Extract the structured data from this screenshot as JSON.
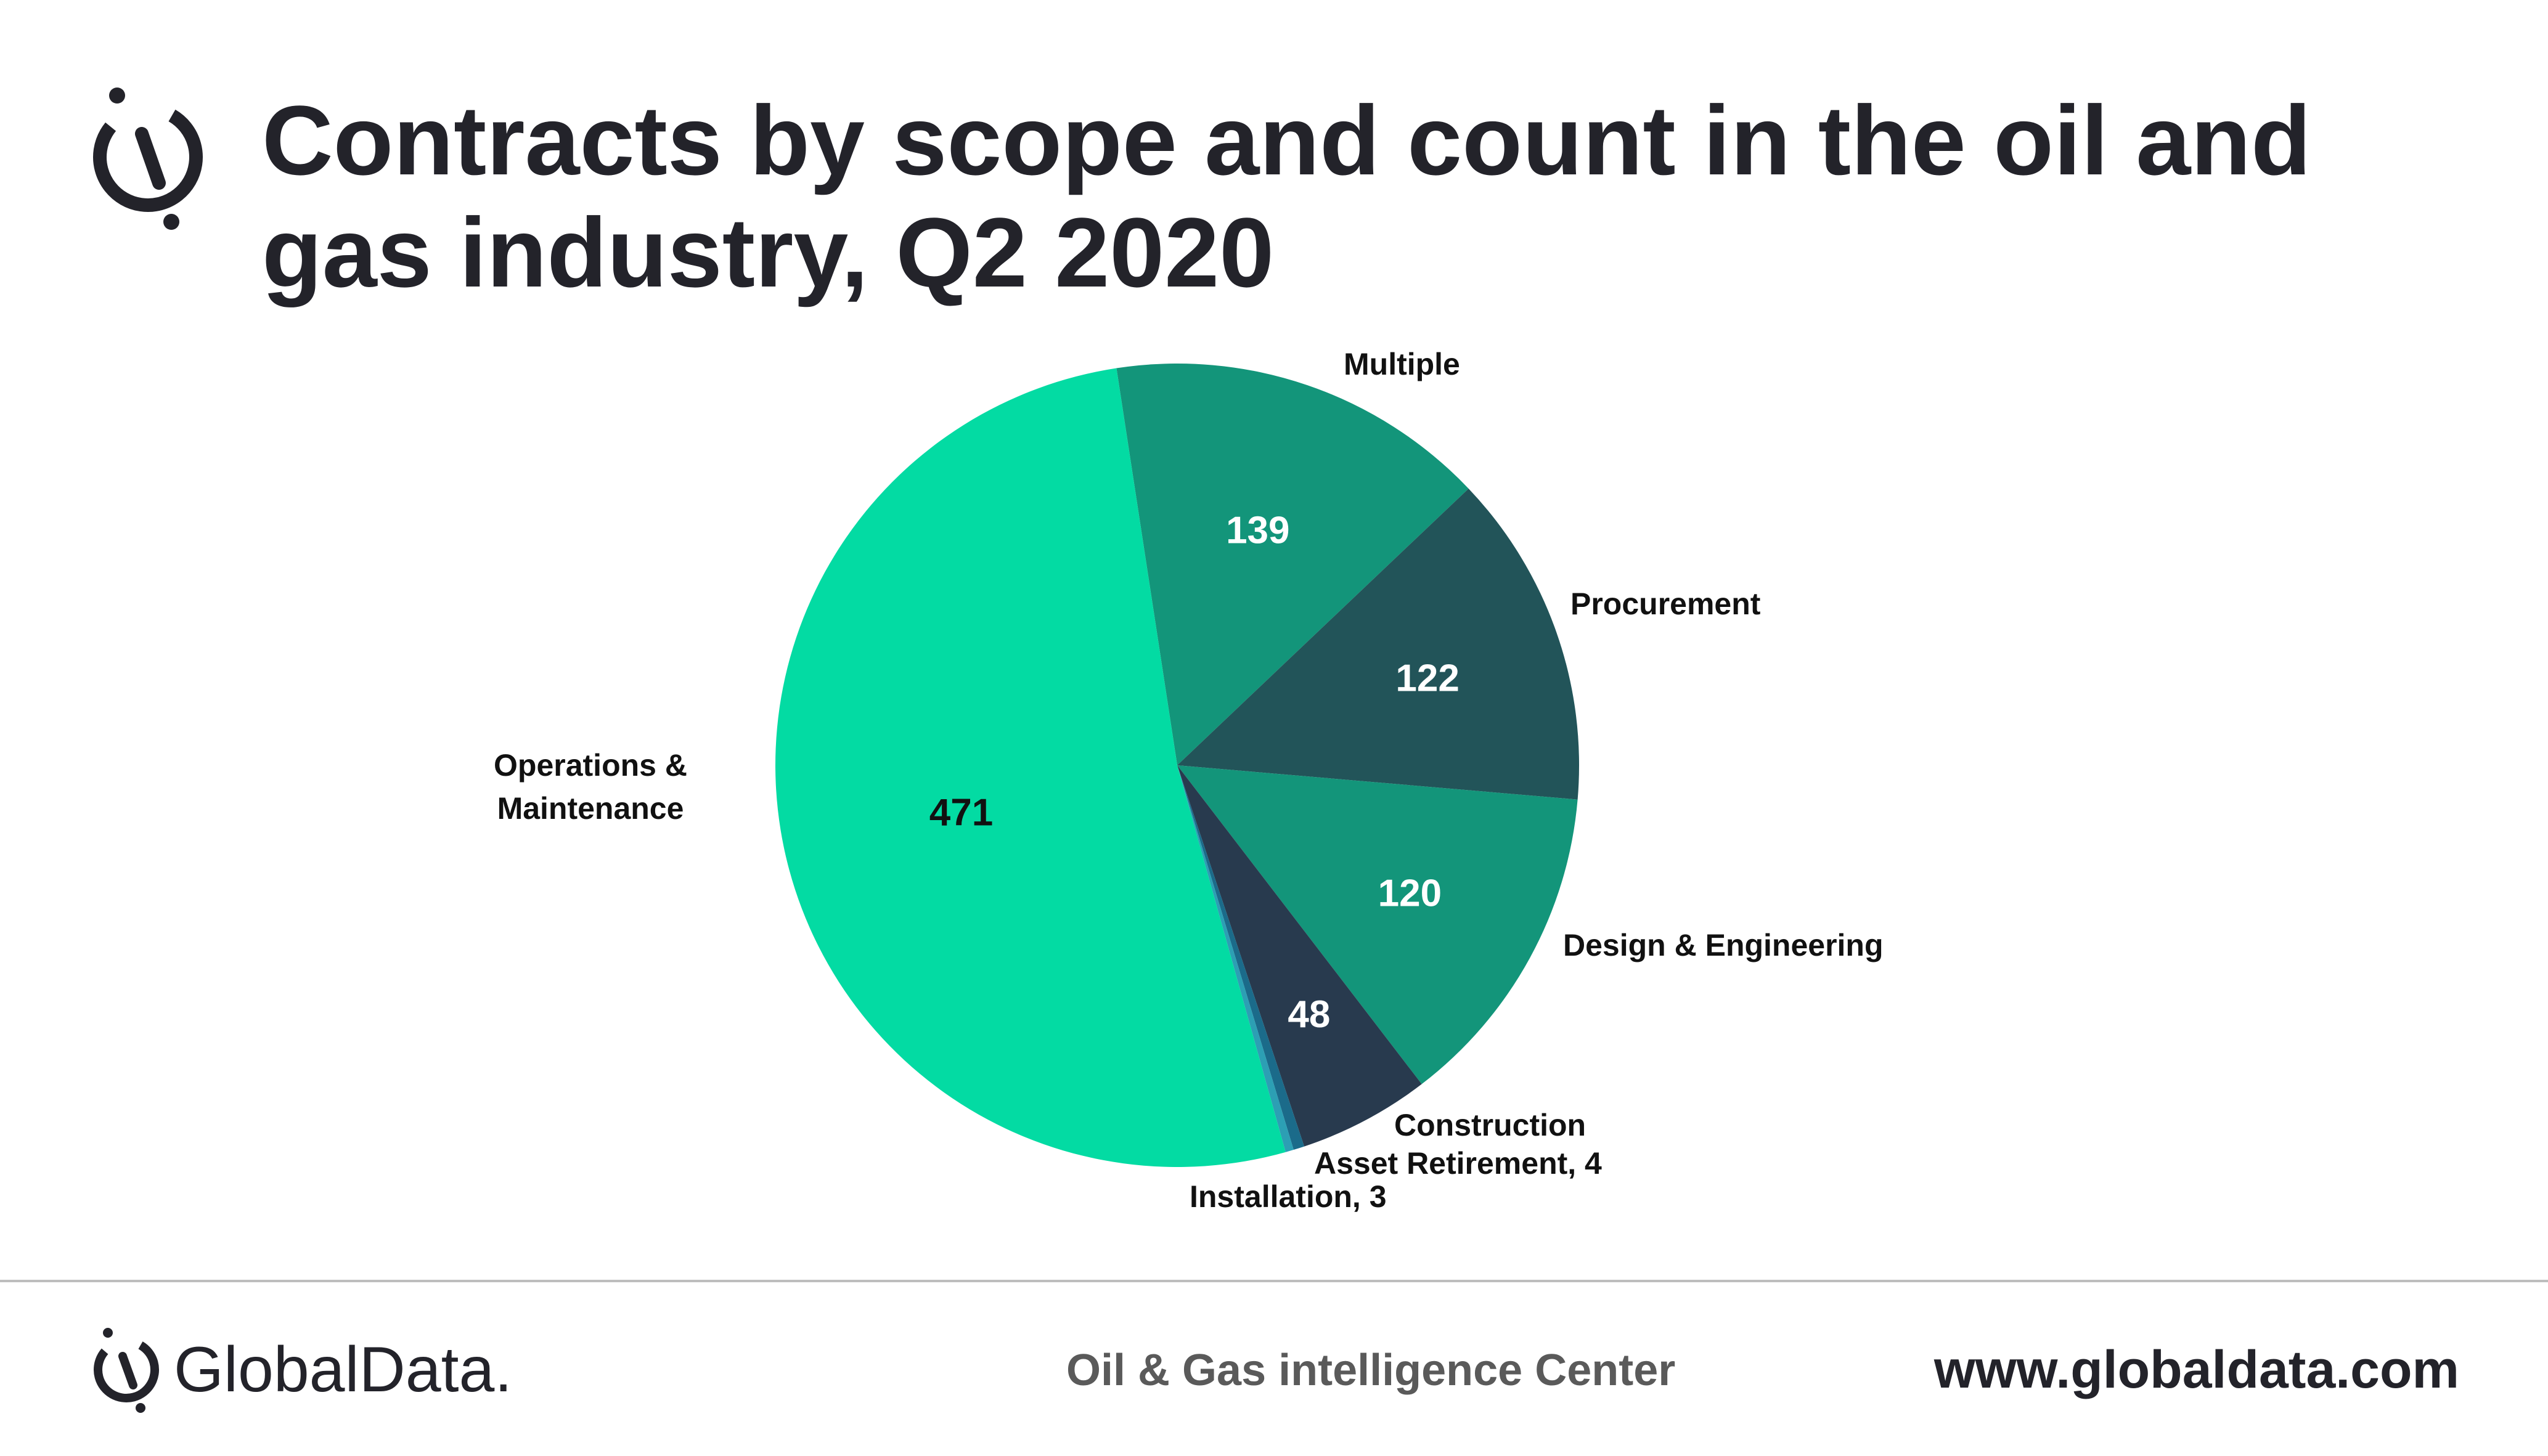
{
  "header": {
    "title_line1": "Contracts by scope and count in the oil and",
    "title_line2": "gas industry, Q2 2020",
    "logo_icon": "globaldata-logo-icon"
  },
  "chart_data": {
    "type": "pie",
    "title": "Contracts by scope and count in the oil and gas industry, Q2 2020",
    "labels": [
      "Multiple",
      "Procurement",
      "Design & Engineering",
      "Construction",
      "Asset Retirement",
      "Installation",
      "Operations & Maintenance"
    ],
    "values": [
      139,
      122,
      120,
      48,
      4,
      3,
      471
    ],
    "colors": [
      "#13957a",
      "#225459",
      "#13957a",
      "#283a4e",
      "#1b6b8a",
      "#2c9fb4",
      "#03dba3"
    ],
    "value_label_colors": [
      "#ffffff",
      "#ffffff",
      "#ffffff",
      "#ffffff",
      "#111111",
      "#111111",
      "#111111"
    ],
    "start_angle_deg": -8.7,
    "direction": "clockwise",
    "label_texts": {
      "Multiple": "Multiple",
      "Procurement": "Procurement",
      "Design & Engineering": "Design & Engineering",
      "Construction": "Construction",
      "Asset Retirement": "Asset Retirement, 4",
      "Installation": "Installation, 3",
      "Operations & Maintenance": [
        "Operations &",
        "Maintenance"
      ]
    },
    "value_texts": {
      "Multiple": "139",
      "Procurement": "122",
      "Design & Engineering": "120",
      "Construction": "48",
      "Operations & Maintenance": "471"
    }
  },
  "footer": {
    "brand_name": "GlobalData.",
    "center_text": "Oil & Gas intelligence Center",
    "url": "www.globaldata.com",
    "logo_icon": "globaldata-logo-icon"
  }
}
